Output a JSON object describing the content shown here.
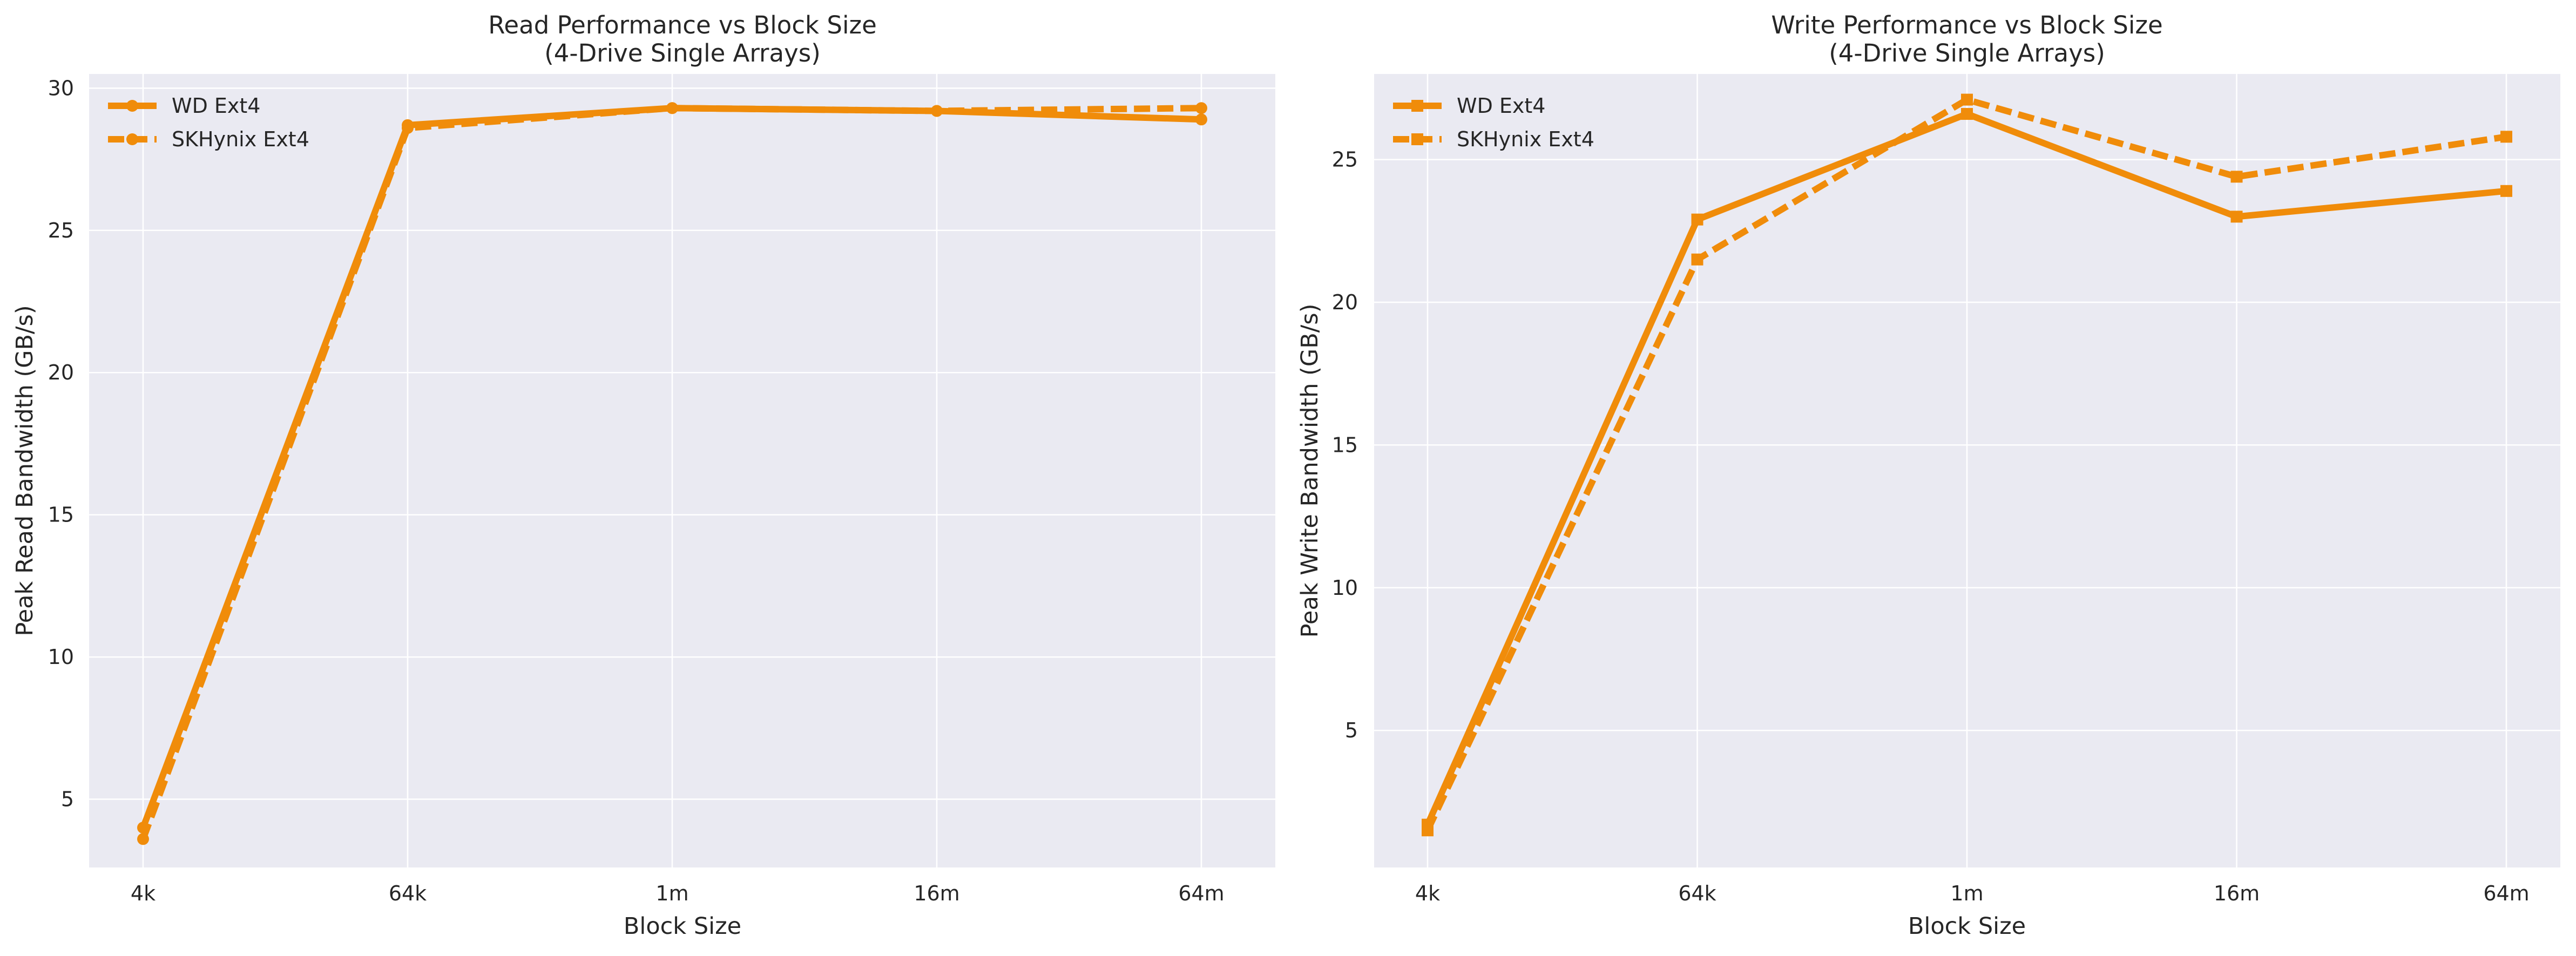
{
  "chart_data": [
    {
      "type": "line",
      "title_line1": "Read Performance vs Block Size",
      "title_line2": "(4-Drive Single Arrays)",
      "xlabel": "Block Size",
      "ylabel": "Peak Read Bandwidth (GB/s)",
      "categories": [
        "4k",
        "64k",
        "1m",
        "16m",
        "64m"
      ],
      "ylim": [
        2.6,
        30.5
      ],
      "yticks": [
        5,
        10,
        15,
        20,
        25,
        30
      ],
      "grid": true,
      "legend_position": "top-left",
      "series": [
        {
          "name": "WD Ext4",
          "values": [
            4.0,
            28.7,
            29.3,
            29.2,
            28.9
          ],
          "line_style": "solid",
          "marker": "circle",
          "color": "#F08C0A"
        },
        {
          "name": "SKHynix Ext4",
          "values": [
            3.6,
            28.6,
            29.3,
            29.2,
            29.3
          ],
          "line_style": "dashed",
          "marker": "circle",
          "color": "#F08C0A"
        }
      ]
    },
    {
      "type": "line",
      "title_line1": "Write Performance vs Block Size",
      "title_line2": "(4-Drive Single Arrays)",
      "xlabel": "Block Size",
      "ylabel": "Peak Write Bandwidth (GB/s)",
      "categories": [
        "4k",
        "64k",
        "1m",
        "16m",
        "64m"
      ],
      "ylim": [
        0.2,
        28.0
      ],
      "yticks": [
        5,
        10,
        15,
        20,
        25
      ],
      "grid": true,
      "legend_position": "top-left",
      "series": [
        {
          "name": "WD Ext4",
          "values": [
            1.7,
            22.9,
            26.6,
            23.0,
            23.9
          ],
          "line_style": "solid",
          "marker": "square",
          "color": "#F08C0A"
        },
        {
          "name": "SKHynix Ext4",
          "values": [
            1.5,
            21.5,
            27.1,
            24.4,
            25.8
          ],
          "line_style": "dashed",
          "marker": "square",
          "color": "#F08C0A"
        }
      ]
    }
  ]
}
